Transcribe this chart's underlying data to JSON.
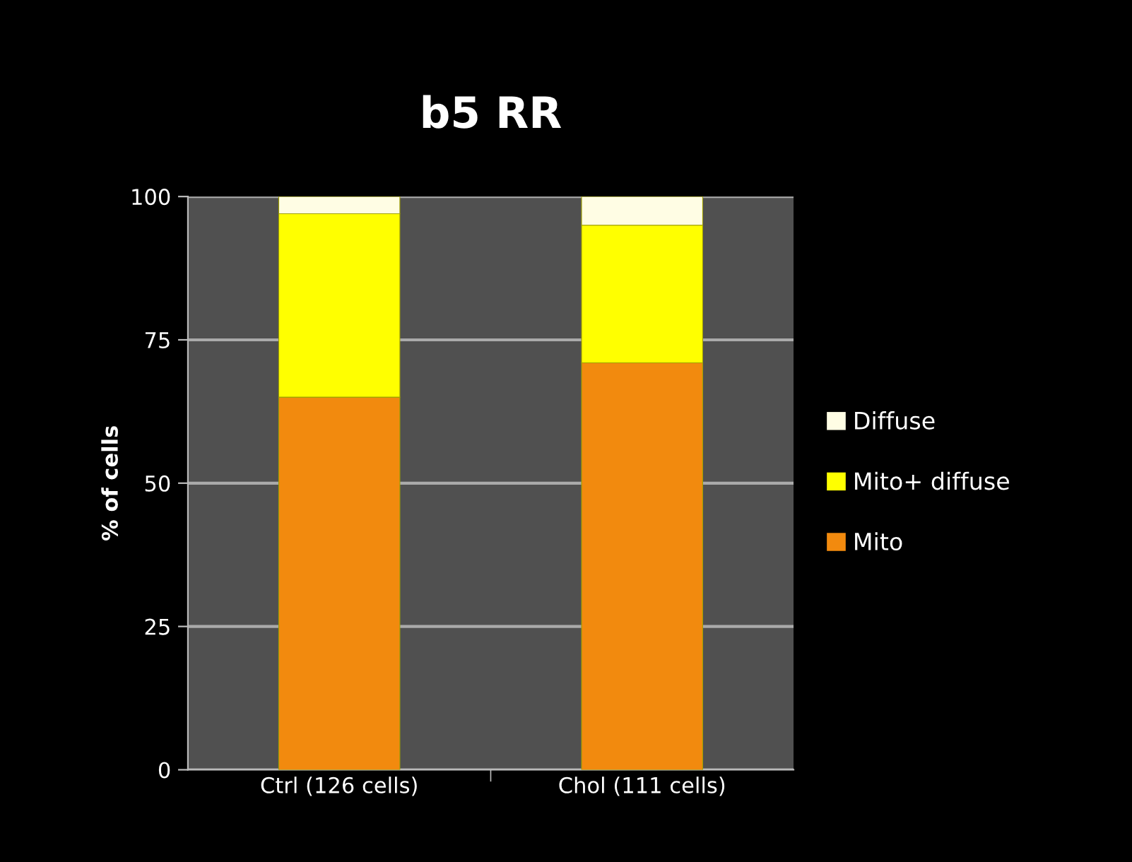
{
  "chart_data": {
    "type": "bar",
    "title": "b5 RR",
    "ylabel": "% of cells",
    "stacked": true,
    "categories": [
      "Ctrl (126 cells)",
      "Chol (111 cells)"
    ],
    "series": [
      {
        "name": "Mito",
        "color": "#f28a0e",
        "values": [
          65,
          71
        ]
      },
      {
        "name": "Mito+ diffuse",
        "color": "#ffff00",
        "values": [
          32,
          24
        ]
      },
      {
        "name": "Diffuse",
        "color": "#fffde4",
        "values": [
          3,
          5
        ]
      }
    ],
    "ylim": [
      0,
      100
    ],
    "yticks": [
      0,
      25,
      50,
      75,
      100
    ],
    "grid": "y",
    "legend": "right"
  }
}
